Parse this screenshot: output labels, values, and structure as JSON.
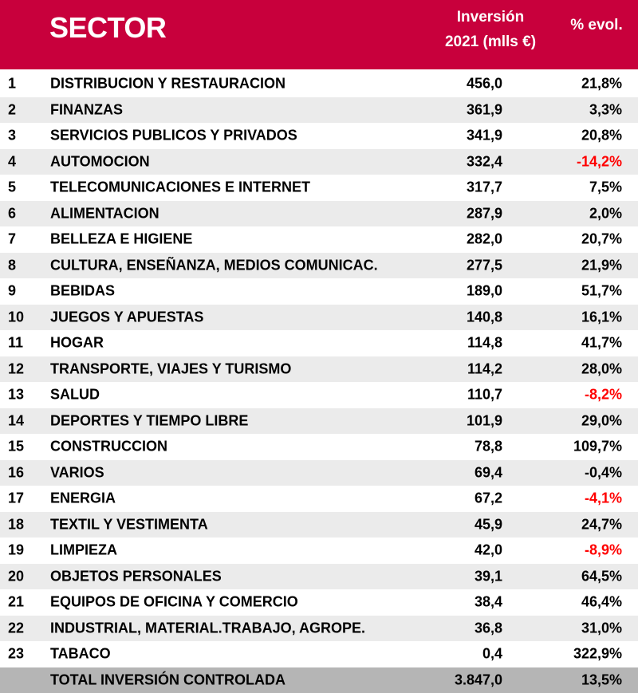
{
  "header": {
    "sector_label": "SECTOR",
    "investment_label_line1": "Inversión",
    "investment_label_line2": "2021 (mlls €)",
    "evolution_label": "% evol."
  },
  "colors": {
    "header_bg": "#c8003c",
    "negative_text": "#ff0000",
    "stripe": "#ebebeb",
    "total_bg": "#b5b5b5"
  },
  "chart_data": {
    "type": "table",
    "columns": [
      "",
      "SECTOR",
      "Inversión 2021 (mlls €)",
      "% evol."
    ],
    "rows": [
      {
        "rank": "1",
        "sector": "DISTRIBUCION Y RESTAURACION",
        "investment": "456,0",
        "evolution": "21,8%"
      },
      {
        "rank": "2",
        "sector": "FINANZAS",
        "investment": "361,9",
        "evolution": "3,3%"
      },
      {
        "rank": "3",
        "sector": "SERVICIOS PUBLICOS Y PRIVADOS",
        "investment": "341,9",
        "evolution": "20,8%"
      },
      {
        "rank": "4",
        "sector": "AUTOMOCION",
        "investment": "332,4",
        "evolution": "-14,2%"
      },
      {
        "rank": "5",
        "sector": "TELECOMUNICACIONES E INTERNET",
        "investment": "317,7",
        "evolution": "7,5%"
      },
      {
        "rank": "6",
        "sector": "ALIMENTACION",
        "investment": "287,9",
        "evolution": "2,0%"
      },
      {
        "rank": "7",
        "sector": "BELLEZA E HIGIENE",
        "investment": "282,0",
        "evolution": "20,7%"
      },
      {
        "rank": "8",
        "sector": "CULTURA, ENSEÑANZA, MEDIOS COMUNICAC.",
        "investment": "277,5",
        "evolution": "21,9%"
      },
      {
        "rank": "9",
        "sector": "BEBIDAS",
        "investment": "189,0",
        "evolution": "51,7%"
      },
      {
        "rank": "10",
        "sector": "JUEGOS Y APUESTAS",
        "investment": "140,8",
        "evolution": "16,1%"
      },
      {
        "rank": "11",
        "sector": "HOGAR",
        "investment": "114,8",
        "evolution": "41,7%"
      },
      {
        "rank": "12",
        "sector": "TRANSPORTE, VIAJES Y TURISMO",
        "investment": "114,2",
        "evolution": "28,0%"
      },
      {
        "rank": "13",
        "sector": "SALUD",
        "investment": "110,7",
        "evolution": "-8,2%"
      },
      {
        "rank": "14",
        "sector": "DEPORTES Y TIEMPO LIBRE",
        "investment": "101,9",
        "evolution": "29,0%"
      },
      {
        "rank": "15",
        "sector": "CONSTRUCCION",
        "investment": "78,8",
        "evolution": "109,7%"
      },
      {
        "rank": "16",
        "sector": "VARIOS",
        "investment": "69,4",
        "evolution": "-0,4%"
      },
      {
        "rank": "17",
        "sector": "ENERGIA",
        "investment": "67,2",
        "evolution": "-4,1%"
      },
      {
        "rank": "18",
        "sector": "TEXTIL Y VESTIMENTA",
        "investment": "45,9",
        "evolution": "24,7%"
      },
      {
        "rank": "19",
        "sector": "LIMPIEZA",
        "investment": "42,0",
        "evolution": "-8,9%"
      },
      {
        "rank": "20",
        "sector": "OBJETOS PERSONALES",
        "investment": "39,1",
        "evolution": "64,5%"
      },
      {
        "rank": "21",
        "sector": "EQUIPOS DE OFICINA Y COMERCIO",
        "investment": "38,4",
        "evolution": "46,4%"
      },
      {
        "rank": "22",
        "sector": "INDUSTRIAL, MATERIAL.TRABAJO, AGROPE.",
        "investment": "36,8",
        "evolution": "31,0%"
      },
      {
        "rank": "23",
        "sector": "TABACO",
        "investment": "0,4",
        "evolution": "322,9%"
      }
    ],
    "total": {
      "sector": "TOTAL INVERSIÓN CONTROLADA",
      "investment": "3.847,0",
      "evolution": "13,5%"
    },
    "highlighted_red_evolution_ranks": [
      "4",
      "13",
      "17",
      "19"
    ]
  }
}
